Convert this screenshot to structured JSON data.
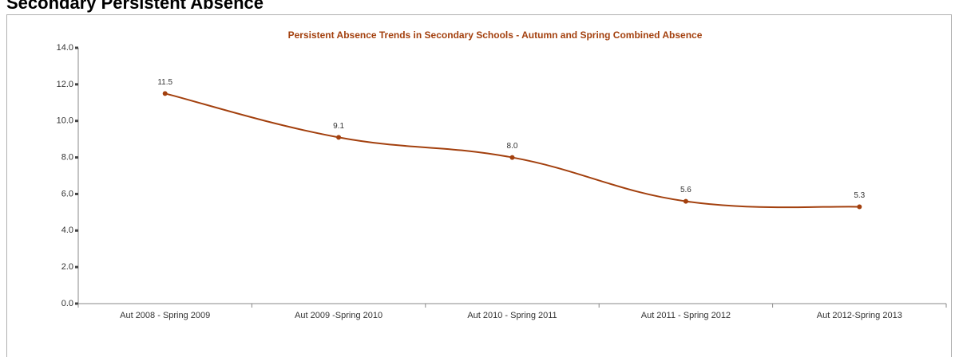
{
  "heading": "Secondary Persistent Absence",
  "chart_data": {
    "type": "line",
    "title": "Persistent Absence Trends in Secondary Schools - Autumn and Spring Combined Absence",
    "categories": [
      "Aut 2008 - Spring 2009",
      "Aut 2009 -Spring 2010",
      "Aut 2010 - Spring 2011",
      "Aut 2011 - Spring 2012",
      "Aut 2012-Spring 2013"
    ],
    "series": [
      {
        "color": "#a3400e",
        "values": [
          11.5,
          9.1,
          8.0,
          5.6,
          5.3
        ],
        "value_labels": [
          "11.5",
          "9.1",
          "8.0",
          "5.6",
          "5.3"
        ]
      }
    ],
    "ylim": [
      0,
      14
    ],
    "yticks": [
      {
        "value": 0,
        "label": "0.0"
      },
      {
        "value": 2,
        "label": "2.0"
      },
      {
        "value": 4,
        "label": "4.0"
      },
      {
        "value": 6,
        "label": "6.0"
      },
      {
        "value": 8,
        "label": "8.0"
      },
      {
        "value": 10,
        "label": "10.0"
      },
      {
        "value": 12,
        "label": "12.0"
      },
      {
        "value": 14,
        "label": "14.0"
      }
    ],
    "grid": false
  }
}
